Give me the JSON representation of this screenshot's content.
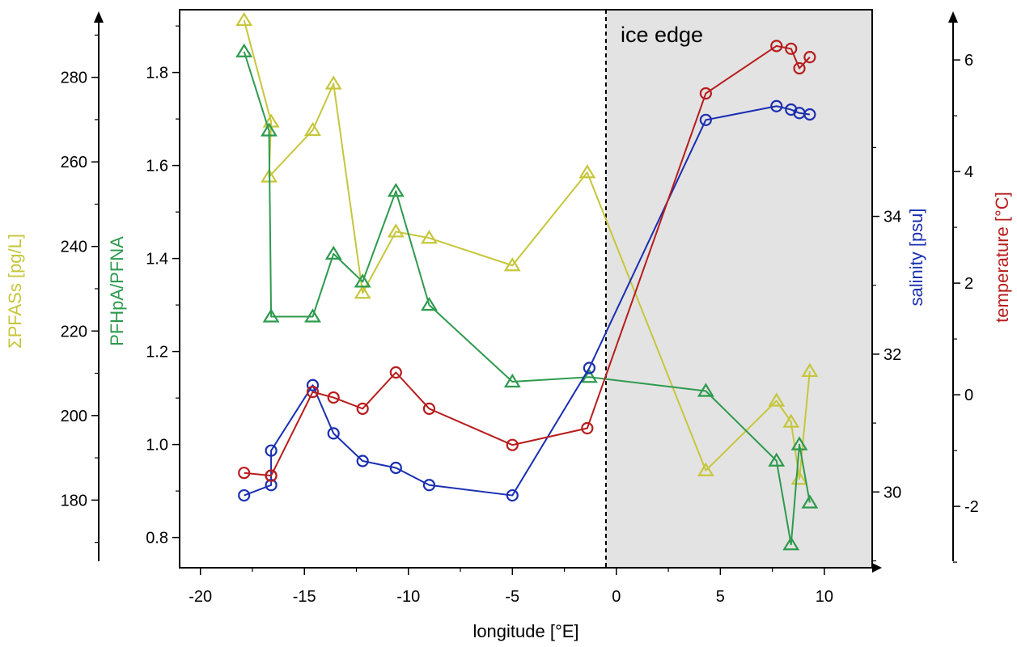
{
  "chart_data": {
    "type": "line",
    "xlabel": "longitude [°E]",
    "xlim": [
      -21,
      12.3
    ],
    "xticks": [
      -20,
      -15,
      -10,
      -5,
      0,
      5,
      10
    ],
    "ice_edge_x": -0.5,
    "annotation": "ice edge",
    "axes": [
      {
        "id": "pfas",
        "label": "ΣPFASs [pg/L]",
        "color": "#c6c63c",
        "ylim": [
          164,
          296
        ],
        "ticks": [
          180,
          200,
          220,
          240,
          260,
          280
        ]
      },
      {
        "id": "ratio",
        "label": "PFHpA/PFNA",
        "color": "#2e9a4e",
        "ylim": [
          0.735,
          1.935
        ],
        "ticks": [
          0.8,
          1.0,
          1.2,
          1.4,
          1.6,
          1.8
        ]
      },
      {
        "id": "sal",
        "label": "salinity [psu]",
        "color": "#1a2fb0",
        "ylim": [
          28.9,
          37.0
        ],
        "ticks": [
          30,
          32,
          34
        ]
      },
      {
        "id": "temp",
        "label": "temperature [°C]",
        "color": "#b81c1c",
        "ylim": [
          -3.1,
          6.9
        ],
        "ticks": [
          -2,
          0,
          2,
          4,
          6
        ]
      }
    ],
    "series": [
      {
        "axis": "pfas",
        "marker": "triangle",
        "color": "#c6c63c",
        "points": [
          [
            -17.9,
            293.5
          ],
          [
            -16.6,
            269.5
          ],
          [
            -16.7,
            256.5
          ],
          [
            -14.6,
            267.5
          ],
          [
            -13.6,
            278.5
          ],
          [
            -12.2,
            229
          ],
          [
            -10.6,
            243.5
          ],
          [
            -9.0,
            242
          ],
          [
            -5.0,
            235.5
          ],
          [
            -1.4,
            257.5
          ],
          [
            4.3,
            187
          ],
          [
            7.7,
            203.5
          ],
          [
            8.4,
            198.5
          ],
          [
            8.8,
            185
          ],
          [
            9.3,
            210.5
          ]
        ]
      },
      {
        "axis": "ratio",
        "marker": "triangle",
        "color": "#2e9a4e",
        "points": [
          [
            -17.9,
            1.845
          ],
          [
            -16.7,
            1.675
          ],
          [
            -16.6,
            1.275
          ],
          [
            -14.6,
            1.275
          ],
          [
            -13.6,
            1.41
          ],
          [
            -12.2,
            1.35
          ],
          [
            -10.6,
            1.545
          ],
          [
            -9.0,
            1.3
          ],
          [
            -5.0,
            1.135
          ],
          [
            -1.3,
            1.145
          ],
          [
            4.3,
            1.115
          ],
          [
            7.7,
            0.965
          ],
          [
            8.4,
            0.785
          ],
          [
            8.8,
            1.0
          ],
          [
            9.3,
            0.875
          ]
        ]
      },
      {
        "axis": "sal",
        "marker": "circle",
        "color": "#1a2fb0",
        "points": [
          [
            -17.9,
            29.95
          ],
          [
            -16.6,
            30.1
          ],
          [
            -16.6,
            30.6
          ],
          [
            -14.6,
            31.55
          ],
          [
            -13.6,
            30.85
          ],
          [
            -12.2,
            30.45
          ],
          [
            -10.6,
            30.35
          ],
          [
            -9.0,
            30.1
          ],
          [
            -5.0,
            29.95
          ],
          [
            -1.3,
            31.8
          ],
          [
            4.3,
            35.4
          ],
          [
            7.7,
            35.6
          ],
          [
            8.4,
            35.55
          ],
          [
            8.8,
            35.5
          ],
          [
            9.3,
            35.48
          ]
        ]
      },
      {
        "axis": "temp",
        "marker": "circle",
        "color": "#b81c1c",
        "points": [
          [
            -17.9,
            -1.4
          ],
          [
            -16.6,
            -1.45
          ],
          [
            -16.6,
            -1.45
          ],
          [
            -14.6,
            0.05
          ],
          [
            -13.6,
            -0.05
          ],
          [
            -12.2,
            -0.25
          ],
          [
            -10.6,
            0.4
          ],
          [
            -9.0,
            -0.25
          ],
          [
            -5.0,
            -0.9
          ],
          [
            -1.4,
            -0.6
          ],
          [
            4.3,
            5.4
          ],
          [
            7.7,
            6.25
          ],
          [
            8.4,
            6.2
          ],
          [
            8.8,
            5.85
          ],
          [
            9.3,
            6.05
          ]
        ]
      }
    ]
  }
}
